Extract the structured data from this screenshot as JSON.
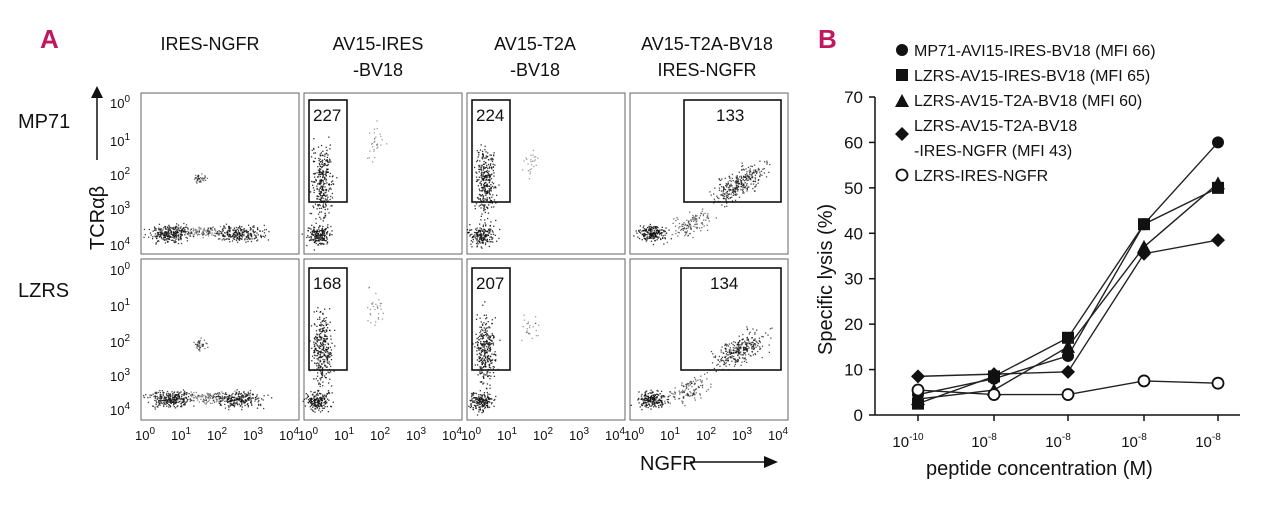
{
  "panels": {
    "a": "A",
    "b": "B"
  },
  "flow": {
    "columns": [
      "IRES-NGFR",
      "AV15-IRES",
      "-BV18",
      "AV15-T2A",
      "-BV18",
      "AV15-T2A-BV18",
      "IRES-NGFR"
    ],
    "rows": [
      "MP71",
      "LZRS"
    ],
    "y_axis_label": "TCRαβ",
    "x_axis_label": "NGFR",
    "y_ticks": [
      "10",
      "10",
      "10",
      "10",
      "10"
    ],
    "y_tick_exps": [
      "0",
      "1",
      "2",
      "3",
      "4"
    ],
    "x_ticks": [
      "10",
      "10",
      "10",
      "10",
      "10"
    ],
    "x_tick_exps": [
      "0",
      "1",
      "2",
      "3",
      "4"
    ],
    "gates": {
      "mp71": [
        "227",
        "224",
        "133"
      ],
      "lzrs": [
        "168",
        "207",
        "134"
      ]
    }
  },
  "chart_data": {
    "type": "line",
    "title": "",
    "xlabel": "peptide concentration (M)",
    "ylabel": "Specific lysis (%)",
    "ylim": [
      0,
      70
    ],
    "yticks": [
      "0",
      "10",
      "20",
      "30",
      "40",
      "50",
      "60",
      "70"
    ],
    "categories": [
      "10-10",
      "10-8",
      "10-8",
      "10-8",
      "10-8"
    ],
    "x_tick_base": "10",
    "x_tick_exps": [
      "-10",
      "-8",
      "-8",
      "-8",
      "-8"
    ],
    "series": [
      {
        "name": "MP71-AVI15-IRES-BV18 (MFI 66)",
        "marker": "circle",
        "values": [
          4.5,
          8,
          13,
          42,
          60
        ]
      },
      {
        "name": "LZRS-AV15-IRES-BV18 (MFI 65)",
        "marker": "square",
        "values": [
          2.5,
          8.5,
          17,
          42,
          50
        ]
      },
      {
        "name": "LZRS-AV15-T2A-BV18 (MFI 60)",
        "marker": "triangle",
        "values": [
          3.5,
          5.5,
          15,
          37,
          51
        ]
      },
      {
        "name": "LZRS-AV15-T2A-BV18",
        "name_line2": "-IRES-NGFR (MFI 43)",
        "marker": "diamond",
        "values": [
          8.5,
          9,
          9.5,
          35.5,
          38.5
        ]
      },
      {
        "name": "LZRS-IRES-NGFR",
        "marker": "open-circle",
        "values": [
          5.5,
          4.5,
          4.5,
          7.5,
          7
        ]
      }
    ]
  }
}
